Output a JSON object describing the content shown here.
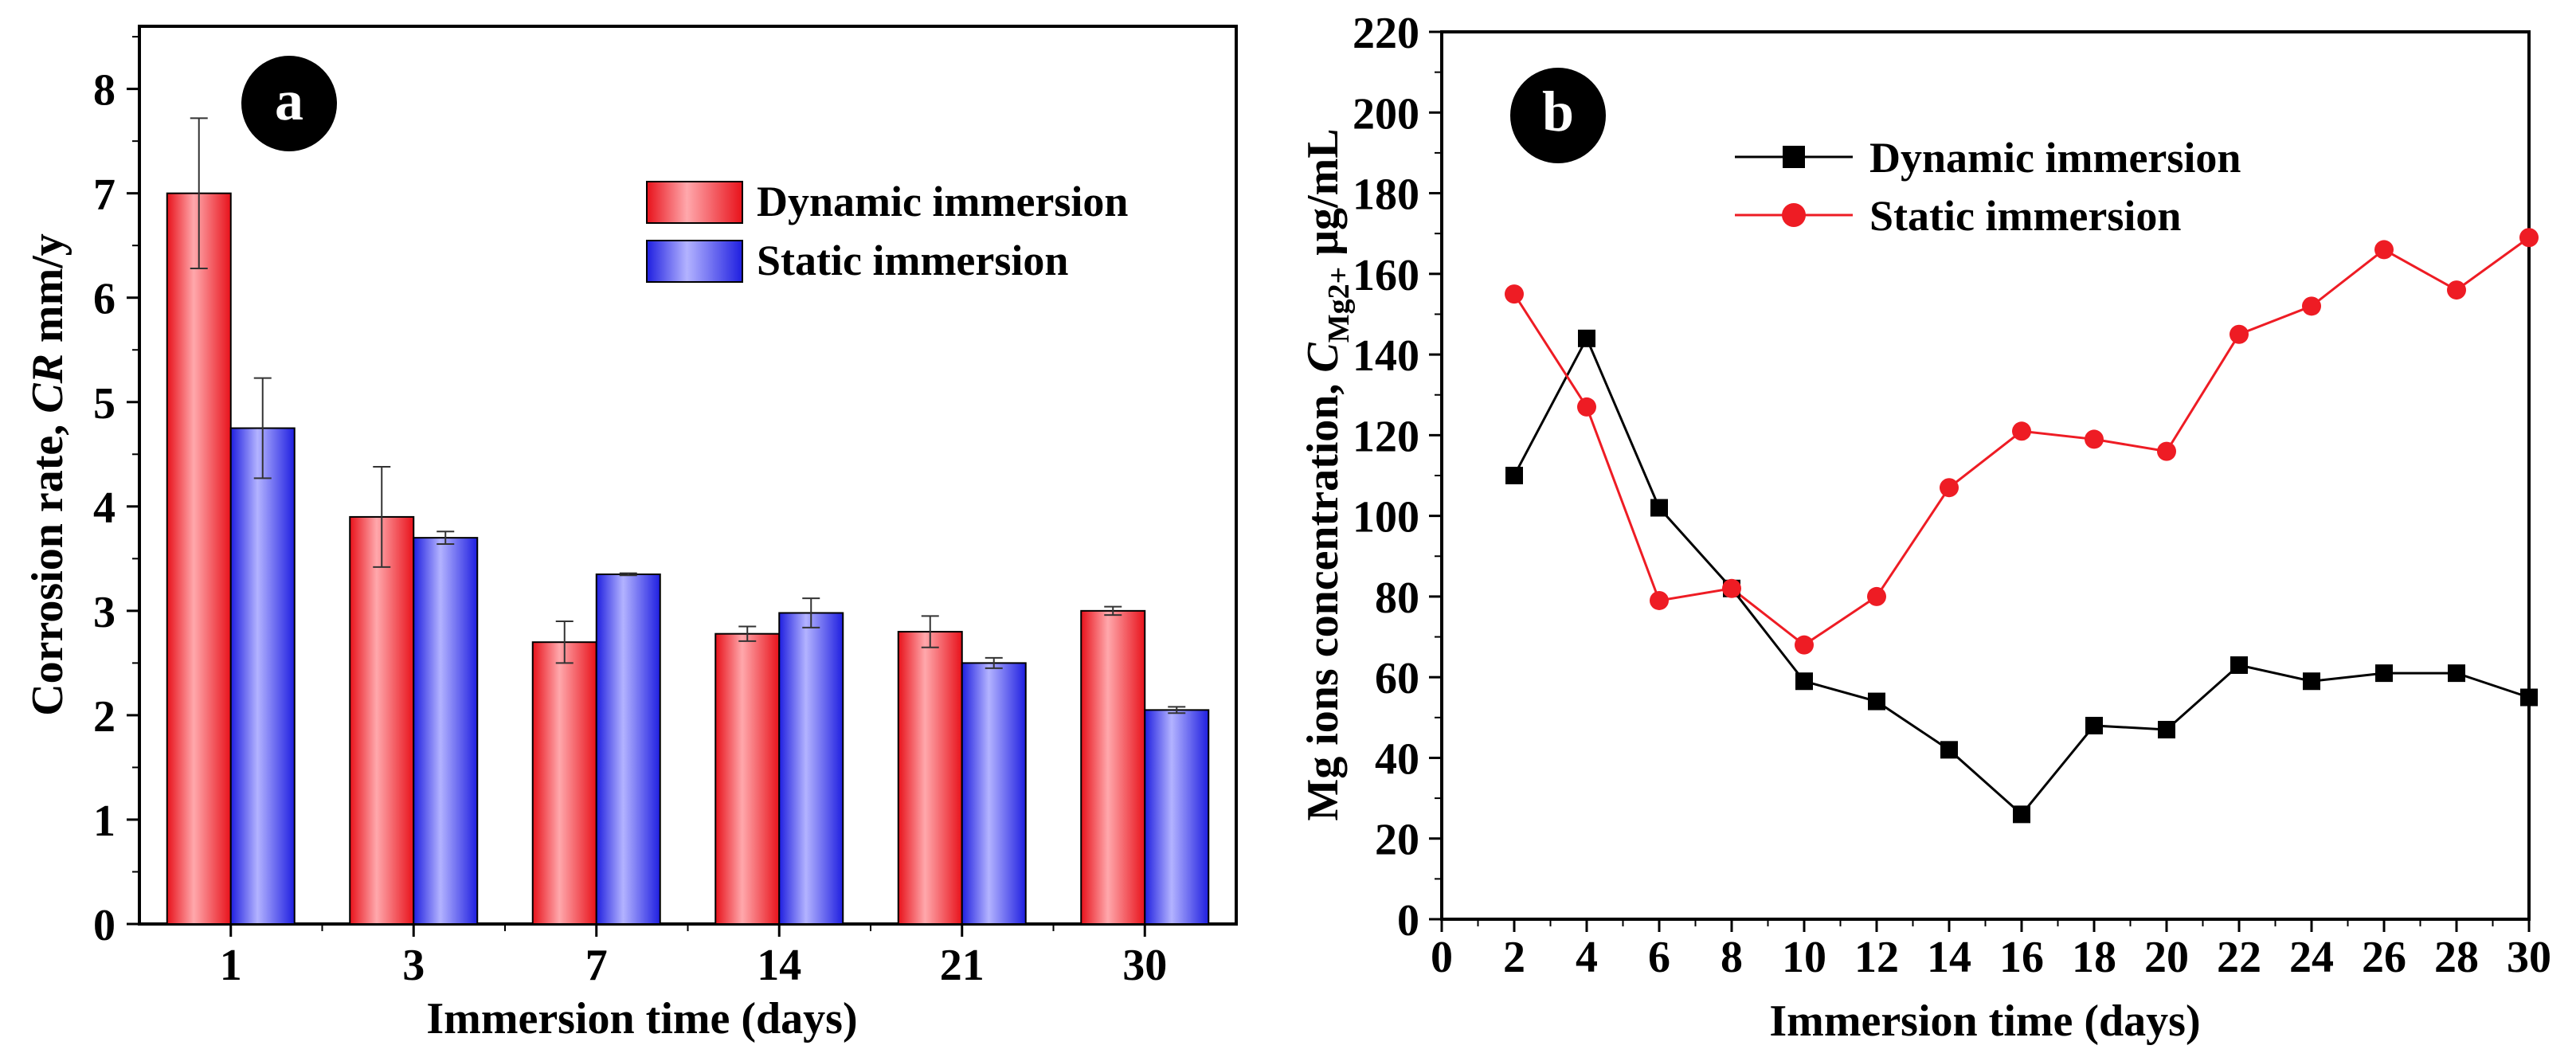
{
  "chart_data": [
    {
      "type": "bar",
      "panel_label": "a",
      "categories": [
        "1",
        "3",
        "7",
        "14",
        "21",
        "30"
      ],
      "series": [
        {
          "name": "Dynamic immersion",
          "color": "#ee1c24",
          "values": [
            7.0,
            3.9,
            2.7,
            2.78,
            2.8,
            3.0
          ],
          "errors": [
            0.72,
            0.48,
            0.2,
            0.07,
            0.15,
            0.04
          ]
        },
        {
          "name": "Static immersion",
          "color": "#2e2ee8",
          "values": [
            4.75,
            3.7,
            3.35,
            2.98,
            2.5,
            2.05
          ],
          "errors": [
            0.48,
            0.06,
            0.01,
            0.14,
            0.05,
            0.03
          ]
        }
      ],
      "xlabel": "Immersion time (days)",
      "ylabel_main": "Corrosion rate, ",
      "ylabel_italic": "CR",
      "ylabel_unit": " mm/y",
      "ylim": [
        0,
        8.6
      ],
      "yticks": [
        0,
        1,
        2,
        3,
        4,
        5,
        6,
        7,
        8
      ],
      "grid": false,
      "legend_position": "top-right"
    },
    {
      "type": "line",
      "panel_label": "b",
      "x": [
        2,
        4,
        6,
        8,
        10,
        12,
        14,
        16,
        18,
        20,
        22,
        24,
        26,
        28,
        30
      ],
      "series": [
        {
          "name": "Dynamic immersion",
          "color": "#000000",
          "marker": "square",
          "values": [
            110,
            144,
            102,
            82,
            59,
            54,
            42,
            26,
            48,
            47,
            63,
            59,
            61,
            61,
            55
          ]
        },
        {
          "name": "Static immersion",
          "color": "#ee1c24",
          "marker": "circle",
          "values": [
            155,
            127,
            79,
            82,
            68,
            80,
            107,
            121,
            119,
            116,
            145,
            152,
            166,
            156,
            169
          ]
        }
      ],
      "xlabel": "Immersion time (days)",
      "ylabel_main": "Mg ions concentration, ",
      "ylabel_italic": "C",
      "ylabel_sub": "Mg2+",
      "ylabel_unit": " μg/mL",
      "xlim": [
        0,
        30
      ],
      "xticks": [
        0,
        2,
        4,
        6,
        8,
        10,
        12,
        14,
        16,
        18,
        20,
        22,
        24,
        26,
        28,
        30
      ],
      "ylim": [
        0,
        220
      ],
      "yticks": [
        0,
        20,
        40,
        60,
        80,
        100,
        120,
        140,
        160,
        180,
        200,
        220
      ],
      "grid": false,
      "legend_position": "top-center"
    }
  ]
}
